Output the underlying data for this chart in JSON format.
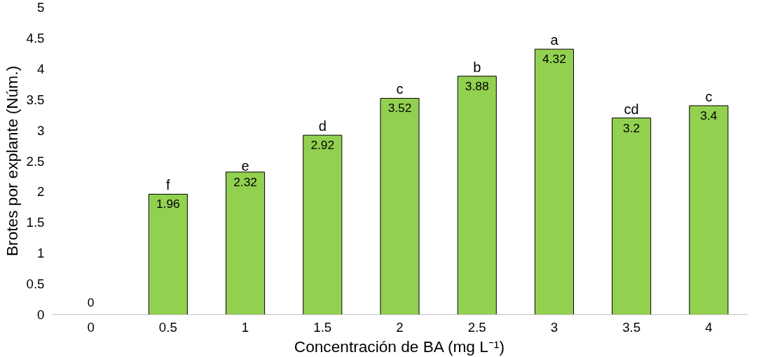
{
  "chart_data": {
    "type": "bar",
    "xlabel": "Concentración de BA (mg L⁻¹)",
    "ylabel": "Brotes por explante (Núm.)",
    "categories": [
      "0",
      "0.5",
      "1",
      "1.5",
      "2",
      "2.5",
      "3",
      "3.5",
      "4"
    ],
    "values": [
      0,
      1.96,
      2.32,
      2.92,
      3.52,
      3.88,
      4.32,
      3.2,
      3.4
    ],
    "color": "#92d050",
    "data_labels": true,
    "ylim": [
      0,
      5
    ],
    "yticks": [
      0,
      0.5,
      1,
      1.5,
      2,
      2.5,
      3,
      3.5,
      4,
      4.5,
      5
    ],
    "grid": false,
    "annotations": [
      {
        "text": "f",
        "x": "0.5",
        "y": 1.96
      },
      {
        "text": "e",
        "x": "1",
        "y": 2.32
      },
      {
        "text": "d",
        "x": "1.5",
        "y": 2.92
      },
      {
        "text": "c",
        "x": "2",
        "y": 3.52
      },
      {
        "text": "b",
        "x": "2.5",
        "y": 3.88
      },
      {
        "text": "a",
        "x": "3",
        "y": 4.32
      },
      {
        "text": "cd",
        "x": "3.5",
        "y": 3.2
      },
      {
        "text": "c",
        "x": "4",
        "y": 3.4
      }
    ]
  }
}
